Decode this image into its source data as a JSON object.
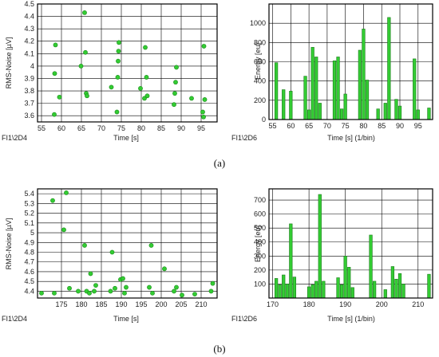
{
  "captions": [
    "(a)",
    "(b)"
  ],
  "chart_data": [
    {
      "id": "a-scatter",
      "type": "scatter",
      "corner_label": "FI1\\2D4",
      "xlabel": "Time [s]",
      "ylabel": "RMS-Noise [µV]",
      "xlim": [
        54,
        99
      ],
      "ylim": [
        3.55,
        4.5
      ],
      "xticks": [
        55,
        60,
        65,
        70,
        75,
        80,
        85,
        90,
        95
      ],
      "yticks": [
        3.6,
        3.7,
        3.8,
        3.9,
        4.0,
        4.1,
        4.2,
        4.3,
        4.4,
        4.5
      ],
      "ytick_labels": [
        "3.6",
        "3.7",
        "3.8",
        "3.9",
        "4",
        "4.1",
        "4.2",
        "4.3",
        "4.4",
        "4.5"
      ],
      "grid": true,
      "color": "#33cc33",
      "points": [
        [
          58.2,
          3.61
        ],
        [
          58.3,
          3.94
        ],
        [
          58.5,
          4.17
        ],
        [
          59.5,
          3.75
        ],
        [
          64.9,
          4.0
        ],
        [
          65.8,
          4.43
        ],
        [
          66.0,
          4.11
        ],
        [
          66.2,
          3.78
        ],
        [
          66.4,
          3.76
        ],
        [
          72.5,
          3.83
        ],
        [
          73.9,
          3.63
        ],
        [
          74.1,
          3.91
        ],
        [
          74.2,
          4.04
        ],
        [
          74.3,
          4.12
        ],
        [
          74.4,
          4.19
        ],
        [
          79.8,
          3.82
        ],
        [
          80.8,
          3.74
        ],
        [
          81.0,
          4.15
        ],
        [
          81.3,
          3.91
        ],
        [
          81.5,
          3.76
        ],
        [
          88.2,
          3.69
        ],
        [
          88.4,
          3.78
        ],
        [
          88.6,
          3.87
        ],
        [
          88.8,
          3.99
        ],
        [
          92.6,
          3.74
        ],
        [
          95.4,
          3.63
        ],
        [
          95.6,
          3.59
        ],
        [
          95.7,
          4.16
        ],
        [
          95.9,
          3.73
        ]
      ]
    },
    {
      "id": "a-bar",
      "type": "bar",
      "corner_label": "FI1\\2D6",
      "xlabel": "Time [s] (1/bin)",
      "ylabel": "Energy [eu]",
      "xlim": [
        54,
        99
      ],
      "ylim": [
        0,
        1200
      ],
      "xticks": [
        55,
        60,
        65,
        70,
        75,
        80,
        85,
        90,
        95
      ],
      "yticks": [
        0,
        200,
        400,
        600,
        800,
        1000
      ],
      "grid": true,
      "color": "#33cc33",
      "bins": [
        [
          56,
          590
        ],
        [
          58,
          310
        ],
        [
          60,
          295
        ],
        [
          64,
          450
        ],
        [
          65,
          100
        ],
        [
          66,
          750
        ],
        [
          67,
          650
        ],
        [
          68,
          170
        ],
        [
          72,
          610
        ],
        [
          73,
          650
        ],
        [
          74,
          110
        ],
        [
          75,
          265
        ],
        [
          79,
          720
        ],
        [
          80,
          940
        ],
        [
          81,
          410
        ],
        [
          84,
          110
        ],
        [
          86,
          170
        ],
        [
          87,
          1060
        ],
        [
          89,
          210
        ],
        [
          90,
          140
        ],
        [
          94,
          630
        ],
        [
          95,
          100
        ],
        [
          98,
          120
        ]
      ]
    },
    {
      "id": "b-scatter",
      "type": "scatter",
      "corner_label": "FI1\\2D4",
      "xlabel": "Time [s]",
      "ylabel": "RMS-Noise [µV]",
      "xlim": [
        169,
        214
      ],
      "ylim": [
        4.33,
        5.45
      ],
      "xticks": [
        175,
        180,
        185,
        190,
        195,
        200,
        205,
        210
      ],
      "yticks": [
        4.4,
        4.5,
        4.6,
        4.7,
        4.8,
        4.9,
        5.0,
        5.1,
        5.2,
        5.3,
        5.4
      ],
      "ytick_labels": [
        "4.4",
        "4.5",
        "4.6",
        "4.7",
        "4.8",
        "4.9",
        "5",
        "5.1",
        "5.2",
        "5.3",
        "5.4"
      ],
      "grid": true,
      "color": "#33cc33",
      "points": [
        [
          170.0,
          4.38
        ],
        [
          172.8,
          5.33
        ],
        [
          173.2,
          4.38
        ],
        [
          175.6,
          5.03
        ],
        [
          176.2,
          5.41
        ],
        [
          177.0,
          4.43
        ],
        [
          179.2,
          4.4
        ],
        [
          180.8,
          4.87
        ],
        [
          181.3,
          4.4
        ],
        [
          182.0,
          4.38
        ],
        [
          182.3,
          4.58
        ],
        [
          183.2,
          4.4
        ],
        [
          183.6,
          4.46
        ],
        [
          187.3,
          4.4
        ],
        [
          187.7,
          4.8
        ],
        [
          188.4,
          4.43
        ],
        [
          189.8,
          4.52
        ],
        [
          190.4,
          4.53
        ],
        [
          190.8,
          4.38
        ],
        [
          191.2,
          4.44
        ],
        [
          197.0,
          4.44
        ],
        [
          197.5,
          4.87
        ],
        [
          197.8,
          4.38
        ],
        [
          200.8,
          4.63
        ],
        [
          203.2,
          4.4
        ],
        [
          203.8,
          4.44
        ],
        [
          205.2,
          4.36
        ],
        [
          208.4,
          4.37
        ],
        [
          212.5,
          4.4
        ],
        [
          212.9,
          4.48
        ]
      ]
    },
    {
      "id": "b-bar",
      "type": "bar",
      "corner_label": "FI1\\2D6",
      "xlabel": "Time [s] (1/bin)",
      "ylabel": "Energy [eu]",
      "xlim": [
        169,
        214
      ],
      "ylim": [
        0,
        780
      ],
      "xticks": [
        170,
        180,
        190,
        200,
        210
      ],
      "yticks": [
        100,
        200,
        300,
        400,
        500,
        600,
        700
      ],
      "grid": true,
      "color": "#33cc33",
      "bins": [
        [
          171,
          140
        ],
        [
          172,
          95
        ],
        [
          173,
          165
        ],
        [
          174,
          100
        ],
        [
          175,
          530
        ],
        [
          176,
          150
        ],
        [
          180,
          80
        ],
        [
          181,
          95
        ],
        [
          182,
          120
        ],
        [
          183,
          740
        ],
        [
          184,
          120
        ],
        [
          188,
          145
        ],
        [
          189,
          95
        ],
        [
          190,
          300
        ],
        [
          191,
          220
        ],
        [
          192,
          75
        ],
        [
          197,
          450
        ],
        [
          198,
          120
        ],
        [
          201,
          60
        ],
        [
          203,
          225
        ],
        [
          204,
          135
        ],
        [
          205,
          175
        ],
        [
          206,
          100
        ],
        [
          213,
          170
        ]
      ]
    }
  ]
}
